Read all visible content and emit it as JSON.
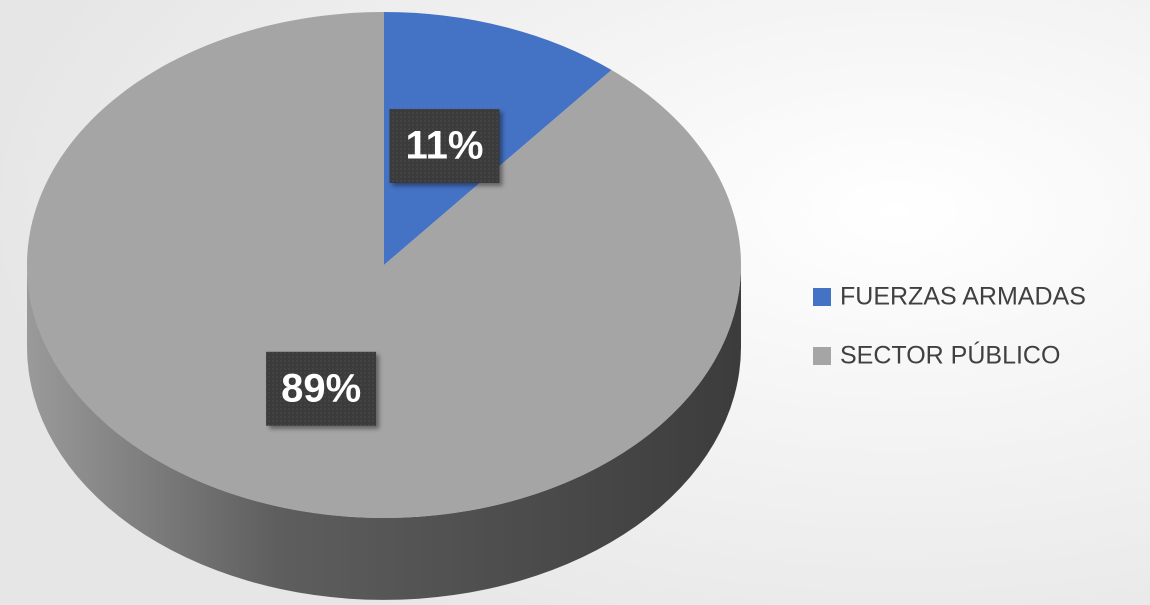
{
  "chart_data": {
    "type": "pie",
    "categories": [
      "FUERZAS ARMADAS",
      "SECTOR PÚBLICO"
    ],
    "values": [
      11,
      89
    ],
    "value_labels": [
      "11%",
      "89%"
    ],
    "colors": [
      "#4472c4",
      "#a5a5a5"
    ],
    "legend": "right"
  }
}
